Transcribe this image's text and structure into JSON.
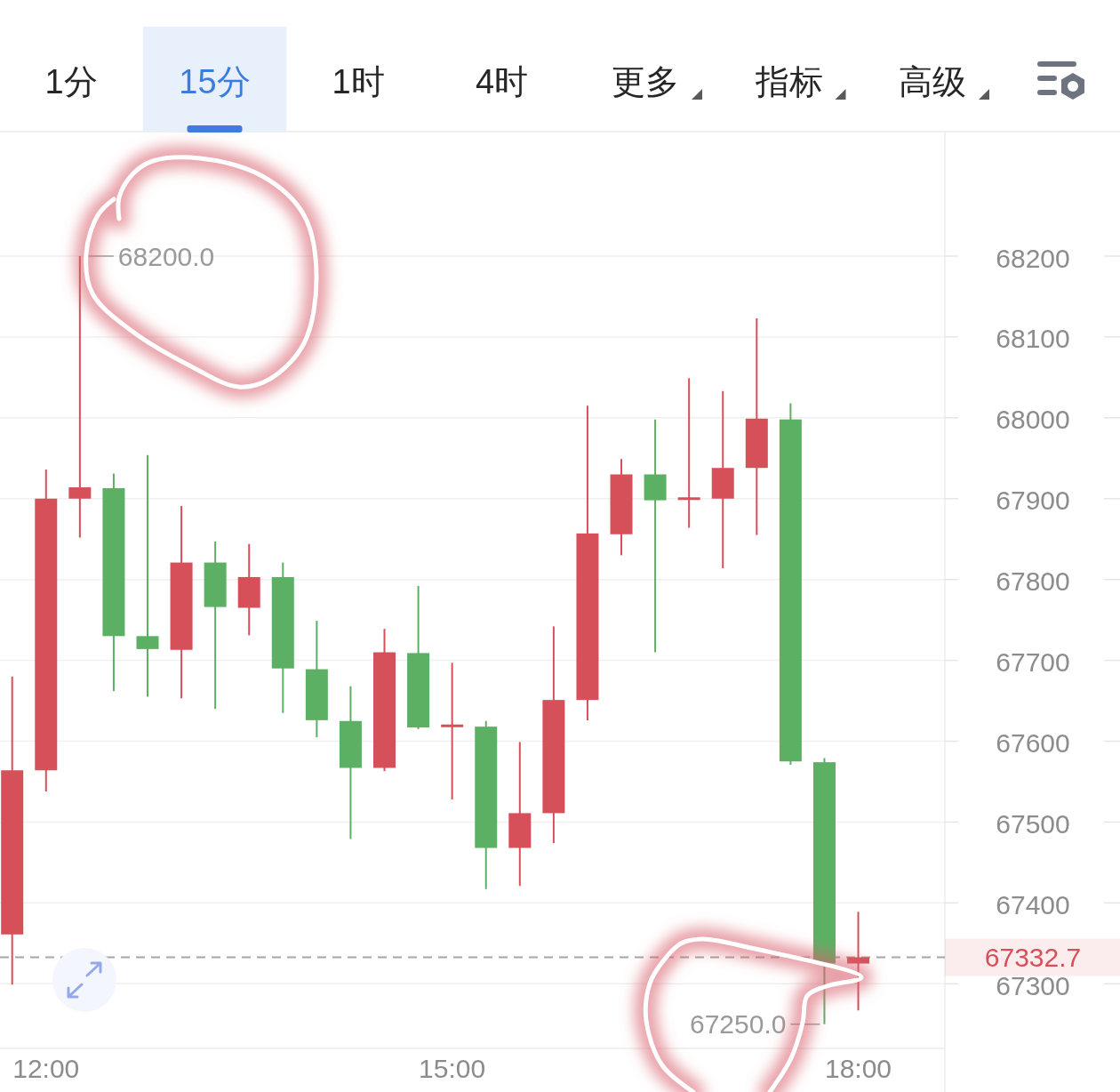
{
  "chart_data": {
    "type": "candlestick",
    "x": [
      11.75,
      12,
      12.25,
      12.5,
      12.75,
      13,
      13.25,
      13.5,
      13.75,
      14,
      14.25,
      14.5,
      14.75,
      15,
      15.25,
      15.5,
      15.75,
      16,
      16.25,
      16.5,
      16.75,
      17,
      17.25,
      17.5,
      17.75,
      18
    ],
    "ohlc": [
      [
        67361,
        67680,
        67299,
        67564
      ],
      [
        67564,
        67936,
        67538,
        67900
      ],
      [
        67900,
        68200,
        67852,
        67914
      ],
      [
        67913,
        67931,
        67662,
        67730
      ],
      [
        67730,
        67954,
        67655,
        67714
      ],
      [
        67713,
        67891,
        67653,
        67821
      ],
      [
        67821,
        67847,
        67640,
        67766
      ],
      [
        67765,
        67844,
        67731,
        67803
      ],
      [
        67803,
        67821,
        67635,
        67690
      ],
      [
        67689,
        67749,
        67605,
        67626
      ],
      [
        67625,
        67668,
        67479,
        67567
      ],
      [
        67567,
        67739,
        67563,
        67710
      ],
      [
        67709,
        67792,
        67615,
        67617
      ],
      [
        67619,
        67697,
        67528,
        67619
      ],
      [
        67618,
        67625,
        67417,
        67468
      ],
      [
        67468,
        67599,
        67421,
        67511
      ],
      [
        67511,
        67742,
        67474,
        67651
      ],
      [
        67651,
        68015,
        67626,
        67857
      ],
      [
        67856,
        67949,
        67830,
        67930
      ],
      [
        67930,
        67998,
        67710,
        67898
      ],
      [
        67900,
        68049,
        67864,
        67900
      ],
      [
        67900,
        68033,
        67814,
        67938
      ],
      [
        67938,
        68123,
        67855,
        67999
      ],
      [
        67998,
        68018,
        67571,
        67575
      ],
      [
        67574,
        67579,
        67250,
        67325
      ],
      [
        67325,
        67389,
        67267,
        67332.7
      ]
    ],
    "colors": [
      "#d6505a",
      "#d6505a",
      "#d6505a",
      "#5cb064",
      "#5cb064",
      "#d6505a",
      "#5cb064",
      "#d6505a",
      "#5cb064",
      "#5cb064",
      "#5cb064",
      "#d6505a",
      "#5cb064",
      "#d6505a",
      "#5cb064",
      "#d6505a",
      "#d6505a",
      "#d6505a",
      "#d6505a",
      "#5cb064",
      "#d6505a",
      "#d6505a",
      "#d6505a",
      "#5cb064",
      "#5cb064",
      "#d6505a"
    ],
    "xlim": [
      11.66,
      18.64
    ],
    "xticks": [
      {
        "value": 12,
        "label": "12:00"
      },
      {
        "value": 15,
        "label": "15:00"
      },
      {
        "value": 18,
        "label": "18:00"
      }
    ],
    "ylim": [
      67220,
      68354
    ],
    "yticks": [
      67300,
      67400,
      67500,
      67600,
      67700,
      67800,
      67900,
      68000,
      68100,
      68200
    ],
    "grid": "y",
    "ref_lines": [
      {
        "axis": "y",
        "value": 67332.7,
        "label": "67332.7",
        "color": "#a6a6a6",
        "line_style": "dashed"
      }
    ],
    "annotations": [
      "1分",
      "15分",
      "1时",
      "4时",
      "更多",
      "指标",
      "高级",
      {
        "text": "68200.0",
        "x": 12.25,
        "y": 68200
      },
      {
        "text": "67250.0",
        "x": 17.75,
        "y": 67250
      }
    ]
  }
}
